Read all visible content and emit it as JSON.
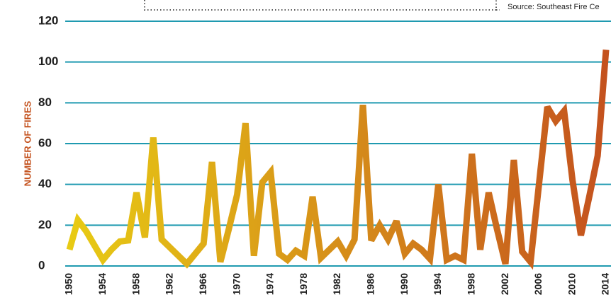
{
  "chart_data": {
    "type": "line",
    "source": "Source: Southeast Fire Ce",
    "ylabel": "NUMBER OF FIRES",
    "x": [
      1950,
      1951,
      1952,
      1953,
      1954,
      1955,
      1956,
      1957,
      1958,
      1959,
      1960,
      1961,
      1962,
      1963,
      1964,
      1965,
      1966,
      1967,
      1968,
      1969,
      1970,
      1971,
      1972,
      1973,
      1974,
      1975,
      1976,
      1977,
      1978,
      1979,
      1980,
      1981,
      1982,
      1983,
      1984,
      1985,
      1986,
      1987,
      1988,
      1989,
      1990,
      1991,
      1992,
      1993,
      1994,
      1995,
      1996,
      1997,
      1998,
      1999,
      2000,
      2001,
      2002,
      2003,
      2004,
      2005,
      2006,
      2007,
      2008,
      2009,
      2010,
      2011,
      2012,
      2013,
      2014
    ],
    "series": [
      {
        "gradient": [
          "#e8cb14",
          "#c4521e"
        ],
        "values": [
          8,
          22.5,
          17,
          10,
          3,
          8,
          12,
          12.5,
          36,
          14,
          63,
          13,
          9,
          5,
          1,
          6,
          11,
          51,
          2,
          18,
          35,
          70,
          5,
          41,
          46,
          6,
          3,
          7.5,
          5,
          34,
          4,
          8,
          12,
          5,
          13,
          79,
          12.5,
          20,
          13,
          22,
          6,
          11,
          8,
          3.5,
          40,
          3,
          5,
          3,
          55,
          8,
          36,
          18,
          1,
          52,
          7,
          2,
          40,
          78,
          71,
          76,
          42,
          15,
          34,
          54,
          106
        ]
      }
    ],
    "xlim": [
      1950,
      2014
    ],
    "xticks": [
      1950,
      1954,
      1958,
      1962,
      1966,
      1970,
      1974,
      1978,
      1982,
      1986,
      1990,
      1994,
      1998,
      2002,
      2006,
      2010,
      2014
    ],
    "ylim": [
      0,
      120
    ],
    "yticks": [
      0,
      20,
      40,
      60,
      80,
      100,
      120
    ],
    "grid": true,
    "grid_color": "#1f9ab0"
  }
}
